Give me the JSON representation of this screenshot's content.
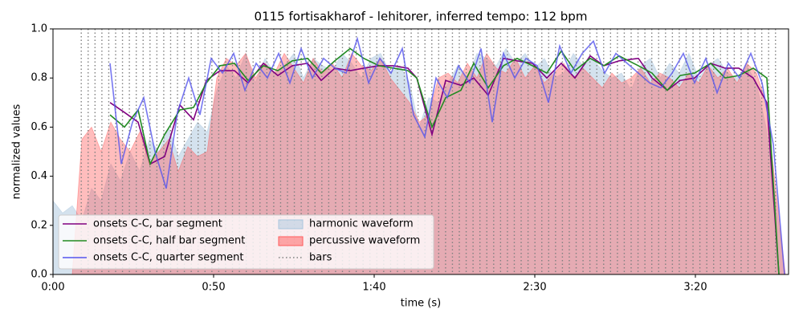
{
  "chart_data": {
    "type": "line",
    "title": "0115 fortisakharof - lehitorer, inferred tempo: 112 bpm",
    "x_label": "time (s)",
    "y_label": "normalized values",
    "xlim": [
      0,
      229
    ],
    "ylim": [
      0,
      1
    ],
    "xticks": [
      {
        "value": 0,
        "label": "0:00"
      },
      {
        "value": 50,
        "label": "0:50"
      },
      {
        "value": 100,
        "label": "1:40"
      },
      {
        "value": 150,
        "label": "2:30"
      },
      {
        "value": 200,
        "label": "3:20"
      }
    ],
    "yticks": [
      {
        "value": 0,
        "label": "0.0"
      },
      {
        "value": 0.2,
        "label": "0.2"
      },
      {
        "value": 0.4,
        "label": "0.4"
      },
      {
        "value": 0.6,
        "label": "0.6"
      },
      {
        "value": 0.8,
        "label": "0.8"
      },
      {
        "value": 1,
        "label": "1.0"
      }
    ],
    "legend": "lower left",
    "series": [
      {
        "name": "onsets C-C, bar segment",
        "kind": "line",
        "color": "#800080",
        "x": [
          17.75,
          22.25,
          26.5,
          30.25,
          34.75,
          39.5,
          43.75,
          47.75,
          52,
          56.5,
          60.75,
          65.5,
          70,
          74.5,
          79.25,
          83.5,
          87.75,
          92.5,
          96.75,
          101.5,
          106,
          110.5,
          113.25,
          118,
          122.25,
          127,
          131,
          135.5,
          140.25,
          144.5,
          149.25,
          153.75,
          158.25,
          162.5,
          167.25,
          171.5,
          176.25,
          182.25,
          186.5,
          191.25,
          195.25,
          199.75,
          204.75,
          209.25,
          213.5,
          218,
          222.25,
          226
        ],
        "values": [
          0.7,
          0.66,
          0.62,
          0.45,
          0.48,
          0.69,
          0.63,
          0.79,
          0.83,
          0.83,
          0.78,
          0.86,
          0.81,
          0.85,
          0.86,
          0.79,
          0.84,
          0.83,
          0.84,
          0.85,
          0.85,
          0.84,
          0.8,
          0.57,
          0.79,
          0.77,
          0.8,
          0.73,
          0.88,
          0.87,
          0.86,
          0.8,
          0.86,
          0.8,
          0.89,
          0.85,
          0.87,
          0.88,
          0.8,
          0.75,
          0.79,
          0.8,
          0.86,
          0.84,
          0.84,
          0.8,
          0.7,
          0.0
        ]
      },
      {
        "name": "onsets C-C, half bar segment",
        "kind": "line",
        "color": "#228b22",
        "x": [
          17.75,
          22.25,
          26.5,
          30.25,
          34.75,
          39.5,
          43.75,
          47.75,
          52,
          56.5,
          60.75,
          65.5,
          70,
          74.5,
          79.25,
          83.5,
          87.75,
          92.5,
          96.75,
          101.5,
          106,
          110.5,
          113.25,
          118,
          122.25,
          127,
          131,
          135.5,
          140.25,
          144.5,
          149.25,
          153.75,
          158.25,
          162.5,
          167.25,
          171.5,
          176.25,
          182.25,
          186.5,
          191.25,
          195.25,
          199.75,
          204.75,
          209.25,
          213.5,
          218,
          222.25,
          226
        ],
        "values": [
          0.65,
          0.6,
          0.67,
          0.45,
          0.57,
          0.67,
          0.68,
          0.78,
          0.85,
          0.86,
          0.79,
          0.85,
          0.83,
          0.87,
          0.88,
          0.82,
          0.87,
          0.92,
          0.88,
          0.85,
          0.84,
          0.83,
          0.8,
          0.6,
          0.72,
          0.75,
          0.86,
          0.76,
          0.85,
          0.88,
          0.85,
          0.82,
          0.91,
          0.83,
          0.88,
          0.85,
          0.89,
          0.85,
          0.82,
          0.75,
          0.81,
          0.82,
          0.86,
          0.8,
          0.81,
          0.84,
          0.8,
          0.0
        ]
      },
      {
        "name": "onsets C-C, quarter segment",
        "kind": "line",
        "color": "#5555ee",
        "x": [
          17.75,
          21.25,
          24.75,
          28.25,
          31.75,
          35.25,
          38.75,
          42.25,
          45.75,
          49.25,
          52.75,
          56.25,
          59.75,
          63.25,
          66.75,
          70.25,
          73.75,
          77.25,
          80.75,
          84.25,
          87.75,
          91.25,
          94.75,
          98.25,
          101.75,
          105.25,
          108.75,
          112.25,
          115.75,
          119.25,
          122.75,
          126.25,
          129.75,
          133.25,
          136.75,
          140.25,
          143.75,
          147.25,
          150.75,
          154.25,
          157.75,
          161.25,
          164.75,
          168.25,
          171.75,
          175.25,
          178.75,
          182.25,
          185.75,
          189.25,
          192.75,
          196.25,
          199.75,
          203.25,
          206.75,
          210.25,
          213.75,
          217.25,
          220.75,
          224.25,
          227.75
        ],
        "values": [
          0.86,
          0.45,
          0.62,
          0.72,
          0.5,
          0.35,
          0.66,
          0.8,
          0.65,
          0.88,
          0.82,
          0.9,
          0.75,
          0.86,
          0.8,
          0.9,
          0.78,
          0.92,
          0.8,
          0.88,
          0.84,
          0.82,
          0.96,
          0.78,
          0.88,
          0.82,
          0.92,
          0.65,
          0.56,
          0.8,
          0.72,
          0.85,
          0.78,
          0.92,
          0.62,
          0.9,
          0.8,
          0.88,
          0.85,
          0.7,
          0.93,
          0.82,
          0.9,
          0.95,
          0.82,
          0.9,
          0.86,
          0.82,
          0.78,
          0.76,
          0.82,
          0.9,
          0.78,
          0.88,
          0.74,
          0.86,
          0.8,
          0.9,
          0.78,
          0.53,
          0.0
        ]
      },
      {
        "name": "harmonic waveform",
        "kind": "area",
        "color": "#a9c6de",
        "x": [
          0,
          3,
          6,
          9,
          12,
          15,
          18,
          21,
          24,
          27,
          30,
          33,
          36,
          39,
          42,
          45,
          48,
          51,
          54,
          57,
          60,
          63,
          66,
          69,
          72,
          75,
          78,
          81,
          84,
          87,
          90,
          93,
          96,
          99,
          102,
          105,
          108,
          111,
          114,
          117,
          120,
          123,
          126,
          129,
          132,
          135,
          138,
          141,
          144,
          147,
          150,
          153,
          156,
          159,
          162,
          165,
          168,
          171,
          174,
          177,
          180,
          183,
          186,
          189,
          192,
          195,
          198,
          201,
          204,
          207,
          210,
          213,
          216,
          219,
          222,
          225,
          228
        ],
        "values": [
          0.3,
          0.25,
          0.28,
          0.22,
          0.35,
          0.3,
          0.45,
          0.38,
          0.5,
          0.42,
          0.55,
          0.5,
          0.6,
          0.48,
          0.55,
          0.62,
          0.58,
          0.75,
          0.85,
          0.8,
          0.9,
          0.78,
          0.88,
          0.82,
          0.85,
          0.9,
          0.8,
          0.88,
          0.85,
          0.83,
          0.9,
          0.86,
          0.8,
          0.88,
          0.9,
          0.82,
          0.85,
          0.78,
          0.6,
          0.72,
          0.7,
          0.78,
          0.85,
          0.8,
          0.9,
          0.88,
          0.85,
          0.92,
          0.86,
          0.9,
          0.84,
          0.88,
          0.8,
          0.82,
          0.9,
          0.85,
          0.88,
          0.83,
          0.8,
          0.82,
          0.75,
          0.85,
          0.88,
          0.8,
          0.86,
          0.82,
          0.9,
          0.8,
          0.85,
          0.88,
          0.82,
          0.8,
          0.85,
          0.78,
          0.6,
          0.3,
          0.0
        ]
      },
      {
        "name": "percussive waveform",
        "kind": "area",
        "color": "#ff5a5a",
        "x": [
          0,
          3,
          6,
          9,
          12,
          15,
          18,
          21,
          24,
          27,
          30,
          33,
          36,
          39,
          42,
          45,
          48,
          51,
          54,
          57,
          60,
          63,
          66,
          69,
          72,
          75,
          78,
          81,
          84,
          87,
          90,
          93,
          96,
          99,
          102,
          105,
          108,
          111,
          114,
          117,
          120,
          123,
          126,
          129,
          132,
          135,
          138,
          141,
          144,
          147,
          150,
          153,
          156,
          159,
          162,
          165,
          168,
          171,
          174,
          177,
          180,
          183,
          186,
          189,
          192,
          195,
          198,
          201,
          204,
          207,
          210,
          213,
          216,
          219,
          222,
          225,
          228
        ],
        "values": [
          0,
          0,
          0,
          0.55,
          0.6,
          0.5,
          0.62,
          0.55,
          0.5,
          0.58,
          0.45,
          0.5,
          0.55,
          0.42,
          0.52,
          0.48,
          0.5,
          0.8,
          0.88,
          0.85,
          0.9,
          0.8,
          0.86,
          0.82,
          0.9,
          0.84,
          0.78,
          0.88,
          0.82,
          0.86,
          0.8,
          0.9,
          0.85,
          0.83,
          0.88,
          0.8,
          0.75,
          0.7,
          0.62,
          0.65,
          0.8,
          0.82,
          0.78,
          0.86,
          0.8,
          0.9,
          0.84,
          0.82,
          0.88,
          0.8,
          0.85,
          0.78,
          0.82,
          0.86,
          0.8,
          0.84,
          0.8,
          0.76,
          0.82,
          0.78,
          0.8,
          0.84,
          0.78,
          0.82,
          0.8,
          0.76,
          0.82,
          0.78,
          0.85,
          0.8,
          0.84,
          0.78,
          0.86,
          0.82,
          0.7,
          0.35,
          0.0
        ]
      },
      {
        "name": "bars",
        "kind": "vlines",
        "color": "#808080",
        "x": [
          8.8,
          10.94,
          13.08,
          15.22,
          17.36,
          19.5,
          21.64,
          23.78,
          25.92,
          28.06,
          30.2,
          32.34,
          34.48,
          36.62,
          38.76,
          40.9,
          43.04,
          45.18,
          47.32,
          49.46,
          51.6,
          53.74,
          55.88,
          58.02,
          60.16,
          62.3,
          64.44,
          66.58,
          68.72,
          70.86,
          73,
          75.14,
          77.28,
          79.42,
          81.56,
          83.7,
          85.84,
          87.98,
          90.12,
          92.26,
          94.4,
          96.54,
          98.68,
          100.82,
          102.96,
          105.1,
          107.24,
          109.38,
          111.52,
          113.66,
          115.8,
          117.94,
          120.08,
          122.22,
          124.36,
          126.5,
          128.64,
          130.78,
          132.92,
          135.06,
          137.2,
          139.34,
          141.48,
          143.62,
          145.76,
          147.9,
          150.04,
          152.18,
          154.32,
          156.46,
          158.6,
          160.74,
          162.88,
          165.02,
          167.16,
          169.3,
          171.44,
          173.58,
          175.72,
          177.86,
          180,
          182.14,
          184.28,
          186.42,
          188.56,
          190.7,
          192.84,
          194.98,
          197.12,
          199.26,
          201.4,
          203.54,
          205.68,
          207.82,
          209.96,
          212.1,
          214.24,
          216.38,
          218.52,
          220.66,
          222.8,
          224.94
        ]
      }
    ]
  }
}
